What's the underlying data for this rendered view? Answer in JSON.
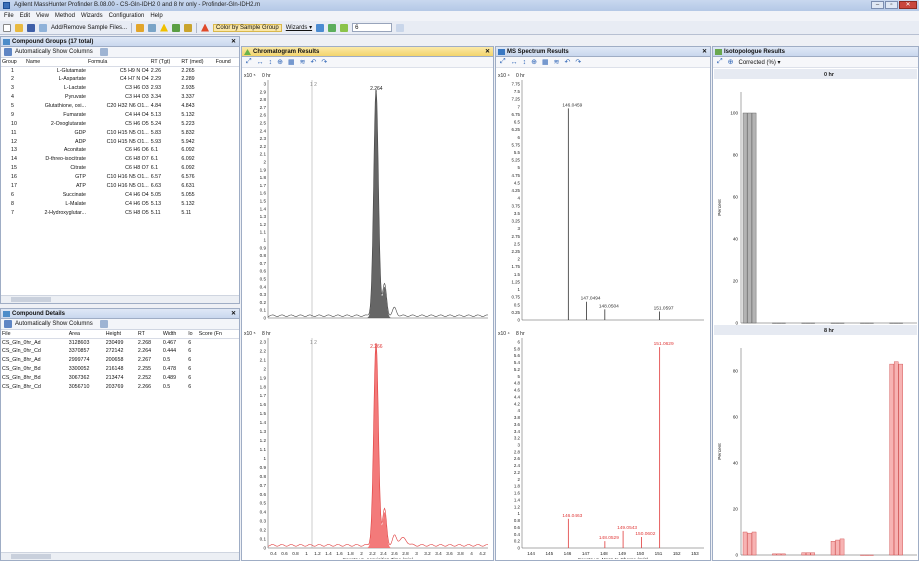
{
  "window": {
    "title": "Agilent MassHunter Profinder B.08.00 - CS-Gln-IDH2 0 and 8 hr only - Profinder-Gln-IDH2.m"
  },
  "menu": [
    "File",
    "Edit",
    "View",
    "Method",
    "Wizards",
    "Configuration",
    "Help"
  ],
  "toolbar": {
    "add_remove": "Add/Remove Sample Files...",
    "color_by": "Color by Sample Group",
    "wizards": "Wizards ▾",
    "number": "6"
  },
  "compound_groups": {
    "title": "Compound Groups (17 total)",
    "auto_columns": "Automatically Show Columns",
    "columns": [
      "Group",
      "Name",
      "Formula",
      "RT (Tgt)",
      "RT (med)",
      "Found"
    ],
    "rows": [
      [
        "1",
        "L-Glutamate",
        "C5 H9 N O4",
        "2.26",
        "2.265"
      ],
      [
        "2",
        "L-Aspartate",
        "C4 H7 N O4",
        "2.29",
        "2.289"
      ],
      [
        "3",
        "L-Lactate",
        "C3 H6 O3",
        "2.93",
        "2.935"
      ],
      [
        "4",
        "Pyruvate",
        "C3 H4 O3",
        "3.34",
        "3.337"
      ],
      [
        "5",
        "Glutathione, oxi...",
        "C20 H32 N6 O1...",
        "4.84",
        "4.843"
      ],
      [
        "9",
        "Fumarate",
        "C4 H4 O4",
        "5.13",
        "5.132"
      ],
      [
        "10",
        "2-Oxoglutarate",
        "C5 H6 O5",
        "5.24",
        "5.223"
      ],
      [
        "11",
        "GDP",
        "C10 H15 N5 O1...",
        "5.83",
        "5.832"
      ],
      [
        "12",
        "ADP",
        "C10 H15 N5 O1...",
        "5.93",
        "5.942"
      ],
      [
        "13",
        "Aconitate",
        "C6 H6 O6",
        "6.1",
        "6.092"
      ],
      [
        "14",
        "D-threo-isocitrate",
        "C6 H8 O7",
        "6.1",
        "6.092"
      ],
      [
        "15",
        "Citrate",
        "C6 H8 O7",
        "6.1",
        "6.092"
      ],
      [
        "16",
        "GTP",
        "C10 H16 N5 O1...",
        "6.57",
        "6.576"
      ],
      [
        "17",
        "ATP",
        "C10 H16 N5 O1...",
        "6.63",
        "6.631"
      ],
      [
        "6",
        "Succinate",
        "C4 H6 O4",
        "5.05",
        "5.055"
      ],
      [
        "8",
        "L-Malate",
        "C4 H6 O5",
        "5.13",
        "5.132"
      ],
      [
        "7",
        "2-Hydroxyglutar...",
        "C5 H8 O5",
        "5.11",
        "5.11"
      ]
    ]
  },
  "compound_details": {
    "title": "Compound Details",
    "auto_columns": "Automatically Show Columns",
    "columns": [
      "File",
      "Area",
      "Height",
      "RT",
      "Width",
      "Io",
      "Score (Fn"
    ],
    "rows": [
      [
        "CS_Gln_0hr_Ad",
        "3128603",
        "230499",
        "2.268",
        "0.467",
        "6"
      ],
      [
        "CS_Gln_0hr_Cd",
        "3370857",
        "272142",
        "2.264",
        "0.444",
        "6"
      ],
      [
        "CS_Gln_8hr_Ad",
        "2999774",
        "200658",
        "2.267",
        "0.5",
        "6"
      ],
      [
        "CS_Gln_0hr_Bd",
        "3300052",
        "216148",
        "2.255",
        "0.478",
        "6"
      ],
      [
        "CS_Gln_8hr_Bd",
        "3067362",
        "213474",
        "2.252",
        "0.489",
        "6"
      ],
      [
        "CS_Gln_8hr_Cd",
        "3056710",
        "203769",
        "2.266",
        "0.5",
        "6"
      ]
    ]
  },
  "chromatogram": {
    "title": "Chromatogram Results",
    "top": {
      "scale": "x10 ⁵",
      "label": "0 hr",
      "marker": "1 2",
      "peak_label": "2.264"
    },
    "bottom": {
      "scale": "x10 ⁵",
      "label": "8 hr",
      "marker": "1 2",
      "peak_label": "2.266"
    },
    "xlabel": "Counts vs. Acquisition Time (min)",
    "xticks": [
      "0.4",
      "0.6",
      "0.8",
      "1",
      "1.2",
      "1.4",
      "1.6",
      "1.8",
      "2",
      "2.2",
      "2.4",
      "2.6",
      "2.8",
      "3",
      "3.2",
      "3.4",
      "3.6",
      "3.8",
      "4",
      "4.2"
    ],
    "top_yticks": [
      "3",
      "2.9",
      "2.8",
      "2.7",
      "2.6",
      "2.5",
      "2.4",
      "2.3",
      "2.2",
      "2.1",
      "2",
      "1.9",
      "1.8",
      "1.7",
      "1.6",
      "1.5",
      "1.4",
      "1.3",
      "1.2",
      "1.1",
      "1",
      "0.9",
      "0.8",
      "0.7",
      "0.6",
      "0.5",
      "0.4",
      "0.3",
      "0.2",
      "0.1",
      "0"
    ],
    "bottom_yticks": [
      "2.3",
      "2.2",
      "2.1",
      "2",
      "1.9",
      "1.8",
      "1.7",
      "1.6",
      "1.5",
      "1.4",
      "1.3",
      "1.2",
      "1.1",
      "1",
      "0.9",
      "0.8",
      "0.7",
      "0.6",
      "0.5",
      "0.4",
      "0.3",
      "0.2",
      "0.1",
      "0"
    ],
    "colors": {
      "top": "#444444",
      "bottom": "#e03a3a"
    }
  },
  "ms_spectrum": {
    "title": "MS Spectrum Results",
    "top": {
      "scale": "x10 ⁴",
      "label": "0 hr",
      "peaks": [
        [
          "146.0459",
          6.95
        ],
        [
          "147.0494",
          0.6
        ],
        [
          "148.0504",
          0.35
        ],
        [
          "151.0597",
          0.28
        ]
      ]
    },
    "bottom": {
      "scale": "x10 ⁴",
      "label": "8 hr",
      "peaks": [
        [
          "146.0463",
          0.85
        ],
        [
          "148.0529",
          0.2
        ],
        [
          "149.0543",
          0.5
        ],
        [
          "150.0602",
          0.32
        ],
        [
          "151.0629",
          5.85
        ]
      ]
    },
    "xlabel": "Counts vs. Mass-to-Charge (m/z)",
    "xticks": [
      "144",
      "145",
      "146",
      "147",
      "148",
      "149",
      "150",
      "151",
      "152",
      "153"
    ],
    "top_yticks": [
      "7.75",
      "7.5",
      "7.25",
      "7",
      "6.75",
      "6.5",
      "6.25",
      "6",
      "5.75",
      "5.5",
      "5.25",
      "5",
      "4.75",
      "4.5",
      "4.25",
      "4",
      "3.75",
      "3.5",
      "3.25",
      "3",
      "2.75",
      "2.5",
      "2.25",
      "2",
      "1.75",
      "1.5",
      "1.25",
      "1",
      "0.75",
      "0.5",
      "0.25",
      "0"
    ],
    "bottom_yticks": [
      "6",
      "5.8",
      "5.6",
      "5.4",
      "5.2",
      "5",
      "4.8",
      "4.6",
      "4.4",
      "4.2",
      "4",
      "3.8",
      "3.6",
      "3.4",
      "3.2",
      "3",
      "2.8",
      "2.6",
      "2.4",
      "2.2",
      "2",
      "1.8",
      "1.6",
      "1.4",
      "1.2",
      "1",
      "0.8",
      "0.6",
      "0.4",
      "0.2",
      "0"
    ]
  },
  "isotopologue": {
    "title": "Isotopologue Results",
    "dropdown": "Corrected (%) ▾",
    "top": {
      "label": "0 hr",
      "yticks": [
        "100",
        "80",
        "60",
        "40",
        "20",
        "0"
      ]
    },
    "bottom": {
      "label": "8 hr",
      "yticks": [
        "80",
        "60",
        "40",
        "20",
        "0"
      ]
    },
    "ylabel": "Percent",
    "xticks": [
      "m+0",
      "m+1",
      "m+2",
      "m+3",
      "m+4",
      "m+5"
    ]
  },
  "chart_data": [
    {
      "type": "bar",
      "title": "0 hr",
      "ylabel": "Percent",
      "categories": [
        "m+0",
        "m+1",
        "m+2",
        "m+3",
        "m+4",
        "m+5"
      ],
      "series": [
        {
          "values": [
            100,
            0,
            0,
            0,
            0,
            0
          ]
        },
        {
          "values": [
            100,
            0,
            0,
            0,
            0,
            0
          ]
        },
        {
          "values": [
            100,
            0,
            0,
            0,
            0,
            0
          ]
        }
      ],
      "ylim": [
        0,
        110
      ]
    },
    {
      "type": "bar",
      "title": "8 hr",
      "ylabel": "Percent",
      "categories": [
        "m+0",
        "m+1",
        "m+2",
        "m+3",
        "m+4",
        "m+5"
      ],
      "series": [
        {
          "values": [
            10,
            0.5,
            1,
            6,
            0,
            83
          ]
        },
        {
          "values": [
            9.5,
            0.5,
            1,
            6.5,
            0,
            84
          ]
        },
        {
          "values": [
            10,
            0.5,
            1,
            7,
            0,
            83
          ]
        }
      ],
      "ylim": [
        0,
        90
      ]
    }
  ]
}
